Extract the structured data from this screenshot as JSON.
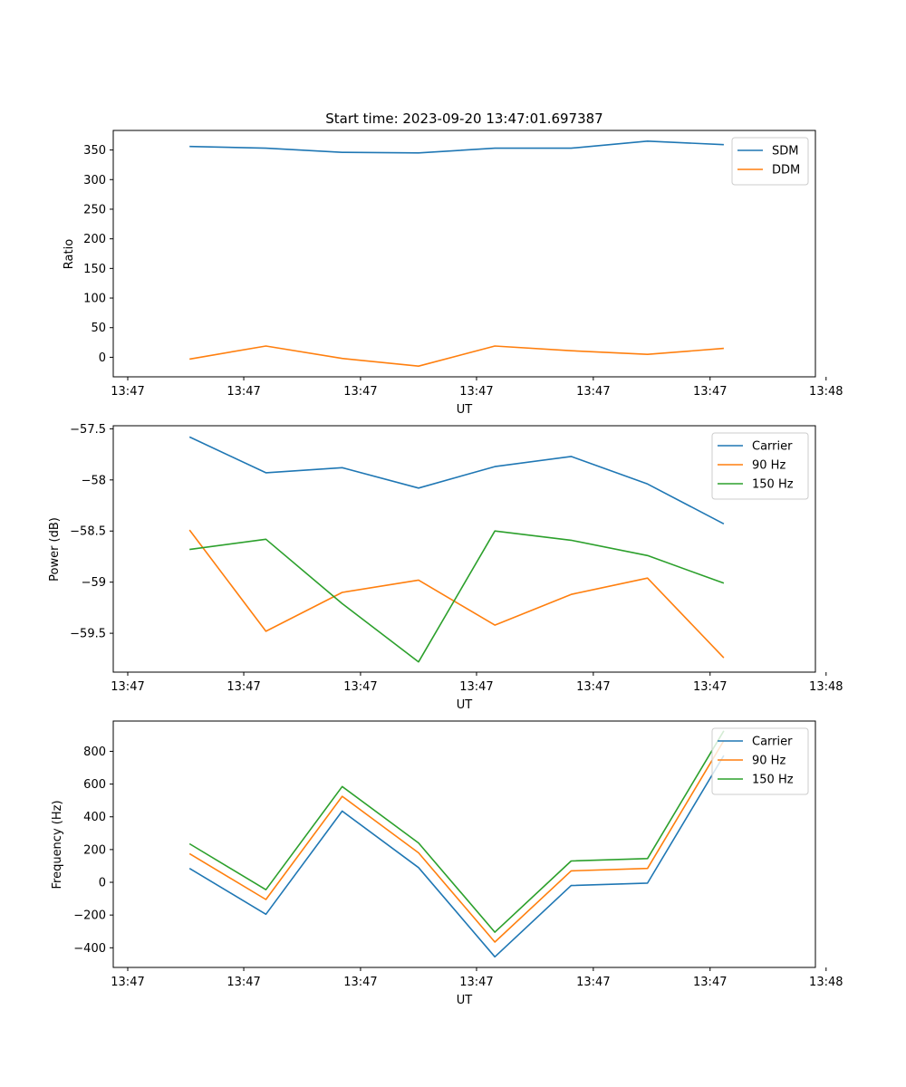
{
  "chart_data": [
    {
      "type": "line",
      "title": "Start time: 2023-09-20 13:47:01.697387",
      "xlabel": "UT",
      "ylabel": "Ratio",
      "x_ticks": [
        "13:47",
        "13:47",
        "13:47",
        "13:47",
        "13:47",
        "13:47",
        "13:48"
      ],
      "x": [
        1,
        2,
        3,
        4,
        5,
        6,
        7,
        8
      ],
      "xlim": [
        0,
        9.2
      ],
      "ylim": [
        -33,
        383
      ],
      "y_ticks": [
        0,
        50,
        100,
        150,
        200,
        250,
        300,
        350
      ],
      "legend": "top-right",
      "series": [
        {
          "name": "SDM",
          "color": "#1f77b4",
          "values": [
            356,
            353,
            346,
            345,
            353,
            353,
            365,
            359
          ]
        },
        {
          "name": "DDM",
          "color": "#ff7f0e",
          "values": [
            -3,
            19,
            -2,
            -15,
            19,
            11,
            5,
            15
          ]
        }
      ]
    },
    {
      "type": "line",
      "title": "",
      "xlabel": "UT",
      "ylabel": "Power (dB)",
      "x_ticks": [
        "13:47",
        "13:47",
        "13:47",
        "13:47",
        "13:47",
        "13:47",
        "13:48"
      ],
      "x": [
        1,
        2,
        3,
        4,
        5,
        6,
        7,
        8
      ],
      "xlim": [
        0,
        9.2
      ],
      "ylim": [
        -59.88,
        -57.47
      ],
      "y_ticks": [
        -57.5,
        -58.0,
        -58.5,
        -59.0,
        -59.5
      ],
      "legend": "top-right",
      "series": [
        {
          "name": "Carrier",
          "color": "#1f77b4",
          "values": [
            -57.58,
            -57.93,
            -57.88,
            -58.08,
            -57.87,
            -57.77,
            -58.04,
            -58.43
          ]
        },
        {
          "name": "90 Hz",
          "color": "#ff7f0e",
          "values": [
            -58.49,
            -59.48,
            -59.1,
            -58.98,
            -59.42,
            -59.12,
            -58.96,
            -59.74
          ]
        },
        {
          "name": "150 Hz",
          "color": "#2ca02c",
          "values": [
            -58.68,
            -58.58,
            -59.21,
            -59.78,
            -58.5,
            -58.59,
            -58.74,
            -59.01
          ]
        }
      ]
    },
    {
      "type": "line",
      "title": "",
      "xlabel": "UT",
      "ylabel": "Frequency (Hz)",
      "x_ticks": [
        "13:47",
        "13:47",
        "13:47",
        "13:47",
        "13:47",
        "13:47",
        "13:48"
      ],
      "x": [
        1,
        2,
        3,
        4,
        5,
        6,
        7,
        8
      ],
      "xlim": [
        0,
        9.2
      ],
      "ylim": [
        -520,
        985
      ],
      "y_ticks": [
        -400,
        -200,
        0,
        200,
        400,
        600,
        800
      ],
      "legend": "top-right",
      "series": [
        {
          "name": "Carrier",
          "color": "#1f77b4",
          "values": [
            85,
            -195,
            435,
            90,
            -455,
            -20,
            -5,
            775
          ]
        },
        {
          "name": "90 Hz",
          "color": "#ff7f0e",
          "values": [
            175,
            -105,
            525,
            180,
            -365,
            70,
            85,
            865
          ]
        },
        {
          "name": "150 Hz",
          "color": "#2ca02c",
          "values": [
            235,
            -45,
            585,
            240,
            -305,
            130,
            145,
            925
          ]
        }
      ]
    }
  ]
}
